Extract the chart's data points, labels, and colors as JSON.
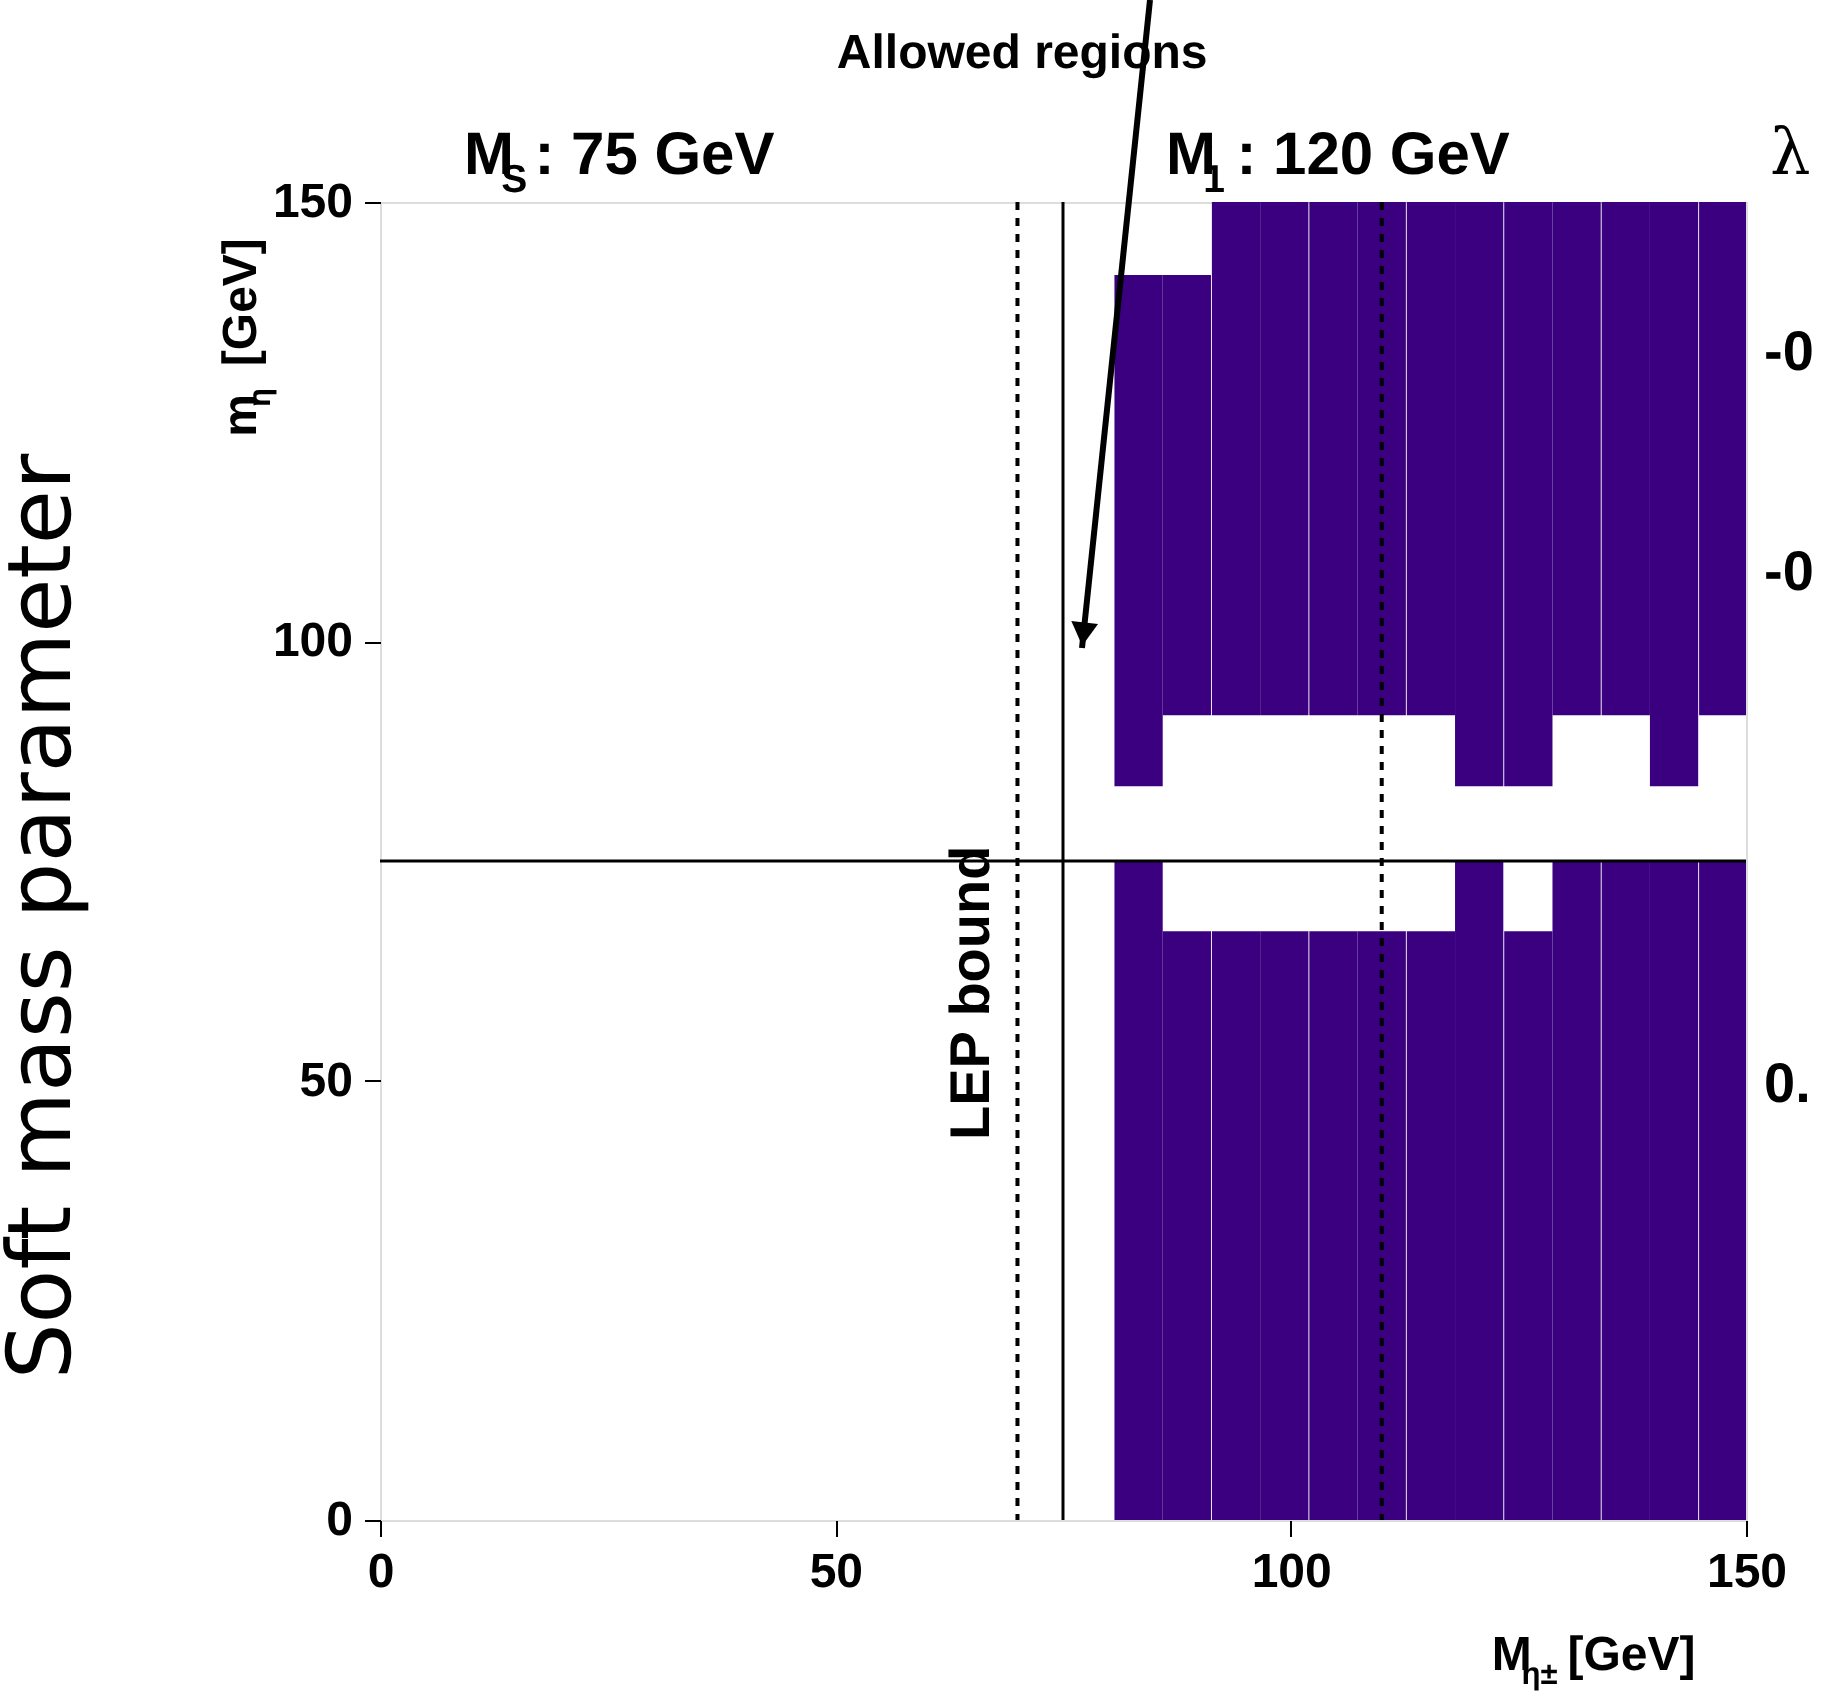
{
  "chart_data": {
    "type": "bar",
    "xlabel": "M$_{η±}$ [GeV]",
    "ylabel": "m$_{η}$ [GeV]",
    "y2label": "λ",
    "x": [
      83.3,
      88.6,
      94.0,
      99.3,
      104.7,
      110.0,
      115.4,
      120.7,
      126.1,
      131.4,
      136.8,
      142.1,
      147.5
    ],
    "series": [
      {
        "color": "#3a007f",
        "base": [
          0,
          0,
          0,
          0,
          0,
          0,
          0,
          0,
          0,
          0,
          0,
          0,
          0
        ],
        "values": [
          75,
          67,
          67,
          67,
          67,
          67,
          67,
          75,
          67,
          75,
          75,
          75,
          75
        ]
      },
      {
        "color": "#3a007f",
        "base": [
          83.5,
          91.6,
          91.6,
          91.6,
          91.6,
          91.6,
          91.6,
          83.5,
          83.5,
          91.6,
          91.6,
          83.5,
          91.6
        ],
        "values": [
          58.2,
          50.1,
          58.4,
          58.4,
          58.4,
          58.4,
          58.4,
          66.5,
          66.5,
          58.4,
          58.4,
          66.5,
          58.4
        ]
      }
    ],
    "xlim": [
      0,
      150
    ],
    "ylim": [
      0,
      150
    ],
    "xticks": [
      0,
      50,
      100,
      150
    ],
    "yticks": [
      0,
      50,
      100,
      150
    ],
    "grid": false,
    "ref_lines": [
      {
        "axis": "x",
        "value": 70,
        "label": "LEP bound",
        "line_style": "dashed"
      },
      {
        "axis": "x",
        "value": 75,
        "line_style": "solid"
      },
      {
        "axis": "x",
        "value": 110,
        "line_style": "dashed"
      },
      {
        "axis": "y",
        "value": 75,
        "line_style": "solid"
      }
    ],
    "annotations": [
      "Allowed regions",
      "M$_{S}$:  75 GeV",
      "M$_{1}$:  120 GeV",
      "Soft mass parameter",
      "-0",
      "-0",
      "0."
    ]
  }
}
